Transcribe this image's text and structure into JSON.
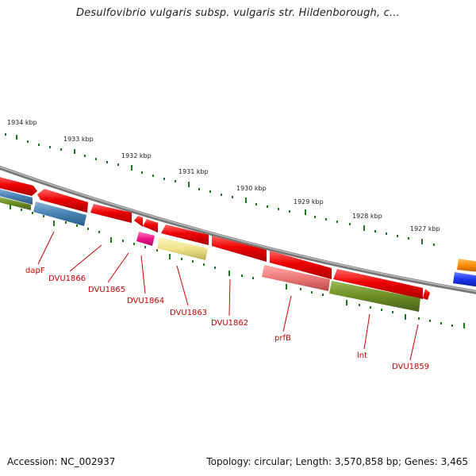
{
  "title": "Desulfovibrio vulgaris subsp. vulgaris str. Hildenborough, c...",
  "footer": {
    "accession": "Accession: NC_002937",
    "summary": "Topology: circular; Length: 3,570,858 bp; Genes: 3,465"
  },
  "scale_labels": [
    "1934 kbp",
    "1933 kbp",
    "1932 kbp",
    "1931 kbp",
    "1930 kbp",
    "1929 kbp",
    "1928 kbp",
    "1927 kbp"
  ],
  "gene_labels": [
    "dapF",
    "DVU1866",
    "DVU1865",
    "DVU1864",
    "DVU1863",
    "DVU1862",
    "prfB",
    "lnt",
    "DVU1859"
  ],
  "colors": {
    "backbone": "#8a8a8a",
    "tick": "#1f7a1f",
    "label": "#cc0000",
    "forward_gene": "#ee0000",
    "pink_gene": "#ee1188",
    "yellow_gene": "#eee48a",
    "salmon_gene": "#ee7777",
    "olive_gene": "#6b8e23",
    "steel_gene": "#4682b4",
    "orange_gene": "#ff8c00",
    "blue_gene": "#1a33ee"
  }
}
